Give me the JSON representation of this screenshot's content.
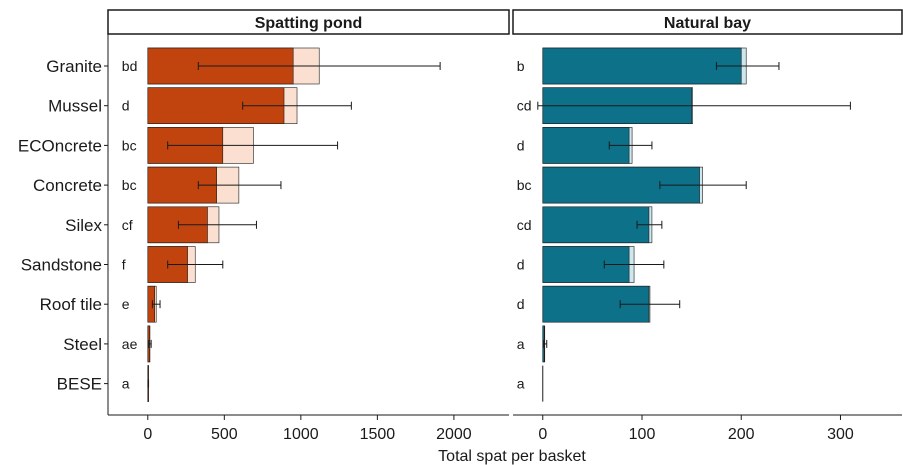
{
  "chart_data": {
    "type": "bar",
    "stacked": true,
    "error_bars": true,
    "xlabel": "Total spat per basket",
    "categories": [
      "Granite",
      "Mussel",
      "ECOncrete",
      "Concrete",
      "Silex",
      "Sandstone",
      "Roof tile",
      "Steel",
      "BESE"
    ],
    "panels": [
      {
        "title": "Spatting pond",
        "xlim": [
          -260,
          2360
        ],
        "ticks": [
          0,
          500,
          1000,
          1500,
          2000
        ],
        "dark_color": "#c1440e",
        "light_color": "#fbe0d1",
        "letters": [
          "bd",
          "d",
          "bc",
          "bc",
          "cf",
          "f",
          "e",
          "ae",
          "a"
        ],
        "dark_values": [
          950,
          890,
          490,
          450,
          390,
          260,
          45,
          12,
          2
        ],
        "total_values": [
          1120,
          975,
          690,
          595,
          465,
          310,
          55,
          14,
          3
        ],
        "err_low": [
          330,
          620,
          130,
          330,
          200,
          130,
          30,
          6,
          1
        ],
        "err_high": [
          1910,
          1330,
          1240,
          870,
          710,
          490,
          80,
          22,
          5
        ]
      },
      {
        "title": "Natural bay",
        "xlim": [
          -30,
          362
        ],
        "ticks": [
          0,
          100,
          200,
          300
        ],
        "dark_color": "#0c7189",
        "light_color": "#cfe7ec",
        "letters": [
          "b",
          "cd",
          "d",
          "bc",
          "cd",
          "d",
          "d",
          "a",
          "a"
        ],
        "dark_values": [
          200,
          150,
          87,
          158,
          107,
          87,
          107,
          1.5,
          0
        ],
        "total_values": [
          205,
          151,
          90,
          161,
          110,
          92,
          108,
          2,
          0
        ],
        "err_low": [
          175,
          -5,
          67,
          118,
          95,
          62,
          78,
          0.5,
          0
        ],
        "err_high": [
          238,
          310,
          110,
          205,
          120,
          122,
          138,
          4,
          0
        ]
      }
    ]
  }
}
